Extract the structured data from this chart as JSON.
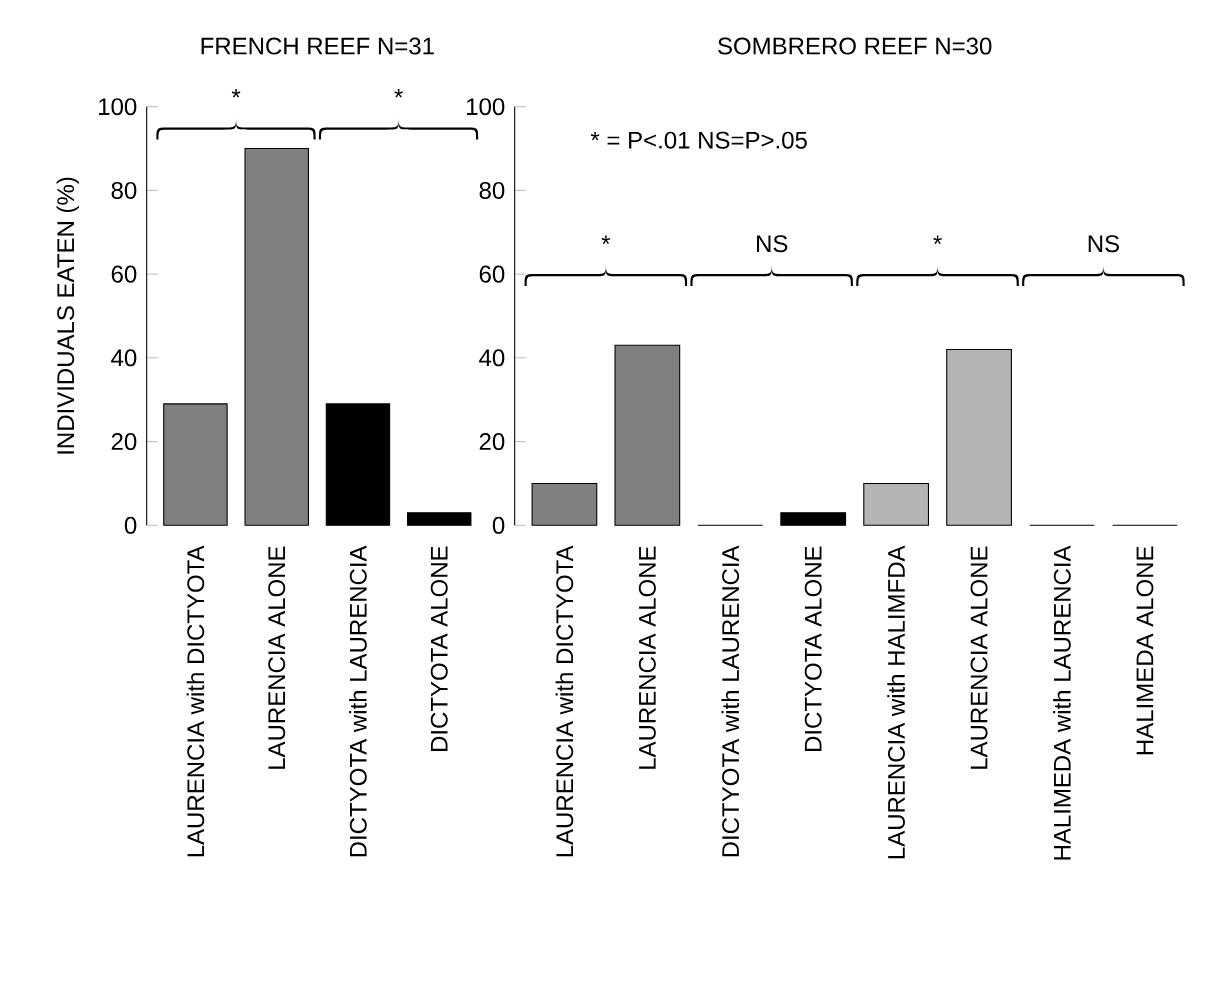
{
  "chart_data": [
    {
      "type": "bar",
      "title": "FRENCH REEF N=31",
      "ylabel": "INDIVIDUALS EATEN (%)",
      "categories": [
        "LAURENCIA with DICTYOTA",
        "LAURENCIA ALONE",
        "DICTYOTA with LAURENCIA",
        "DICTYOTA ALONE"
      ],
      "values": [
        29,
        90,
        29,
        3
      ],
      "colors": [
        "#808080",
        "#808080",
        "#000000",
        "#000000"
      ],
      "ylim": [
        0,
        100
      ],
      "yticks": [
        0,
        20,
        40,
        60,
        80,
        100
      ],
      "annotations": [
        "*",
        "*"
      ]
    },
    {
      "type": "bar",
      "title": "SOMBRERO REEF N=30",
      "categories": [
        "LAURENCIA with DICTYOTA",
        "LAURENCIA ALONE",
        "DICTYOTA with LAURENCIA",
        "DICTYOTA ALONE",
        "LAURENCIA with HALIMFDA",
        "LAURENCIA ALONE",
        "HALIMEDA with LAURENCIA",
        "HALIMEDA ALONE"
      ],
      "values": [
        10,
        43,
        0,
        3,
        10,
        42,
        0,
        0
      ],
      "colors": [
        "#808080",
        "#808080",
        "#000000",
        "#000000",
        "#b4b4b4",
        "#b4b4b4",
        "#000000",
        "#000000"
      ],
      "ylim": [
        0,
        100
      ],
      "yticks": [
        0,
        20,
        40,
        60,
        80,
        100
      ],
      "annotations": [
        "*",
        "NS",
        "*",
        "NS",
        "* = P<.01   NS=P>.05"
      ]
    }
  ]
}
